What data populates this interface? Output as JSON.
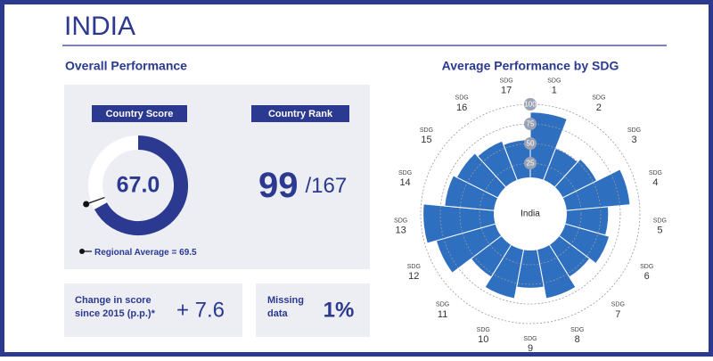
{
  "header": {
    "title": "INDIA"
  },
  "overall": {
    "heading": "Overall Performance",
    "score_heading": "Country Score",
    "score": {
      "value": 67,
      "label": "67.0"
    },
    "regional_label": "Regional Average =",
    "regional_average": 69.5,
    "rank_heading": "Country Rank",
    "rank": 99,
    "rank_total": {
      "value": 167,
      "label": "/167"
    },
    "change_label": "Change in score since 2015 (p.p.)*",
    "change": {
      "value": 7.6,
      "label": "+ 7.6"
    },
    "missing_label": "Missing data",
    "missing": {
      "value": 1,
      "label": "1%"
    }
  },
  "chart_data": {
    "type": "polar-bar",
    "title": "Average Performance by SDG",
    "center_label": "India",
    "category_prefix": "SDG",
    "categories": [
      "1",
      "2",
      "3",
      "4",
      "5",
      "6",
      "7",
      "8",
      "9",
      "10",
      "11",
      "12",
      "13",
      "14",
      "15",
      "16",
      "17"
    ],
    "values": [
      90,
      50,
      55,
      88,
      60,
      65,
      55,
      70,
      55,
      70,
      55,
      85,
      97,
      70,
      65,
      60,
      55
    ],
    "color": "#2f6fc0",
    "rlim": [
      0,
      100
    ],
    "rticks": [
      25,
      50,
      75,
      100
    ],
    "grid": true
  }
}
